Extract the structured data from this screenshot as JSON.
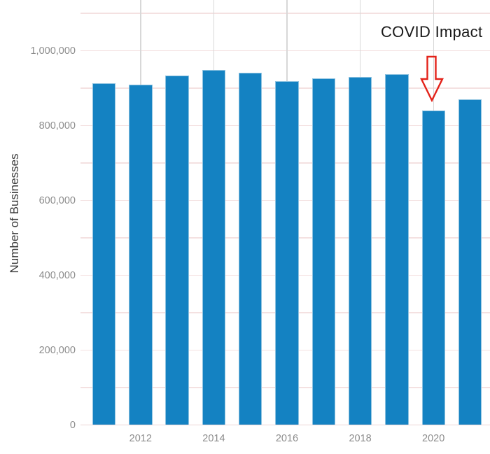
{
  "page": {
    "background": "#ffffff"
  },
  "chart": {
    "ylabel": "Number of Businesses",
    "annotation": {
      "label": "COVID Impact",
      "arrow": "red-outlined-down-arrow",
      "target_category": "2020"
    },
    "colors": {
      "bar_fill": "#1482c2",
      "bar_edge": "#8fc3e0",
      "grid_horizontal": "#f4e1e1",
      "grid_vertical": "#d8d8d8",
      "axis_line": "#ecd6d6",
      "tick_label": "#8c8c8c",
      "axis_title": "#3b3b3b",
      "annotation_text": "#191919",
      "arrow_stroke": "#e32219",
      "background": "#ffffff"
    }
  },
  "chart_data": {
    "type": "bar",
    "title": "",
    "xlabel": "",
    "ylabel": "Number of Businesses",
    "categories": [
      "2011",
      "2012",
      "2013",
      "2014",
      "2015",
      "2016",
      "2017",
      "2018",
      "2019",
      "2020",
      "2021"
    ],
    "values": [
      913000,
      909000,
      933000,
      949000,
      942000,
      919000,
      926000,
      930000,
      938000,
      840000,
      871000
    ],
    "x_tick_labels": [
      "2012",
      "2014",
      "2016",
      "2018",
      "2020"
    ],
    "y_ticks": [
      {
        "value": 0,
        "label": "0"
      },
      {
        "value": 200000,
        "label": "200,000"
      },
      {
        "value": 400000,
        "label": "400,000"
      },
      {
        "value": 600000,
        "label": "600,000"
      },
      {
        "value": 800000,
        "label": "800,000"
      },
      {
        "value": 1000000,
        "label": "1,000,000"
      }
    ],
    "ylim": [
      0,
      1100000
    ],
    "grid_step": 100000,
    "grid": "horizontal light-pink lines every 100,000; vertical gray lines at labeled even years",
    "legend": "none",
    "annotations": [
      {
        "text": "COVID Impact",
        "target_category": "2020",
        "marker": "red outlined down arrow above 2020 bar"
      }
    ]
  }
}
